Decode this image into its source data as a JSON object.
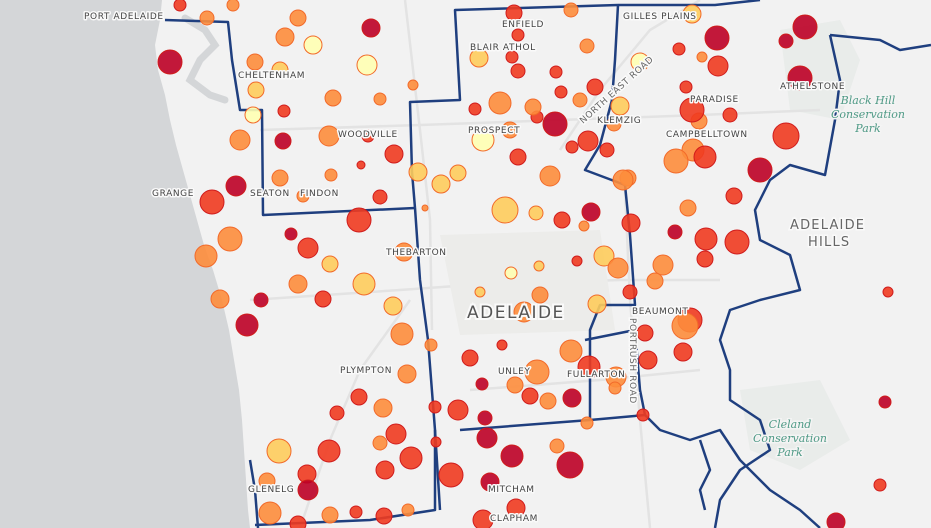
{
  "map": {
    "suburbs": [
      {
        "id": "port-adelaide",
        "text": "PORT ADELAIDE"
      },
      {
        "id": "enfield",
        "text": "ENFIELD"
      },
      {
        "id": "gilles-plains",
        "text": "GILLES PLAINS"
      },
      {
        "id": "blair-athol",
        "text": "BLAIR ATHOL"
      },
      {
        "id": "cheltenham",
        "text": "CHELTENHAM"
      },
      {
        "id": "athelstone",
        "text": "ATHELSTONE"
      },
      {
        "id": "paradise",
        "text": "PARADISE"
      },
      {
        "id": "klemzig",
        "text": "KLEMZIG"
      },
      {
        "id": "prospect",
        "text": "PROSPECT"
      },
      {
        "id": "woodville",
        "text": "WOODVILLE"
      },
      {
        "id": "campbelltown",
        "text": "CAMPBELLTOWN"
      },
      {
        "id": "grange",
        "text": "GRANGE"
      },
      {
        "id": "seaton",
        "text": "SEATON"
      },
      {
        "id": "findon",
        "text": "FINDON"
      },
      {
        "id": "thebarton",
        "text": "THEBARTON"
      },
      {
        "id": "beaumont",
        "text": "BEAUMONT"
      },
      {
        "id": "plympton",
        "text": "PLYMPTON"
      },
      {
        "id": "unley",
        "text": "UNLEY"
      },
      {
        "id": "fullarton",
        "text": "FULLARTON"
      },
      {
        "id": "glenelg",
        "text": "GLENELG"
      },
      {
        "id": "mitcham",
        "text": "MITCHAM"
      },
      {
        "id": "clapham",
        "text": "CLAPHAM"
      }
    ],
    "city": "ADELAIDE",
    "region": [
      "ADELAIDE",
      "HILLS"
    ],
    "parks": {
      "black_hill": [
        "Black Hill",
        "Conservation",
        "Park"
      ],
      "cleland": [
        "Cleland",
        "Conservation",
        "Park"
      ]
    },
    "roads": {
      "north_east": "NORTH EAST ROAD",
      "portrush": "PORTRUSH ROAD"
    },
    "colors": {
      "sea": "#d4d6d8",
      "land": "#f2f2f2",
      "boundary": "#1f3f7f",
      "scale": [
        "#ffffb2",
        "#fecc5c",
        "#fd8d3c",
        "#f03b20",
        "#bd0026"
      ]
    }
  }
}
